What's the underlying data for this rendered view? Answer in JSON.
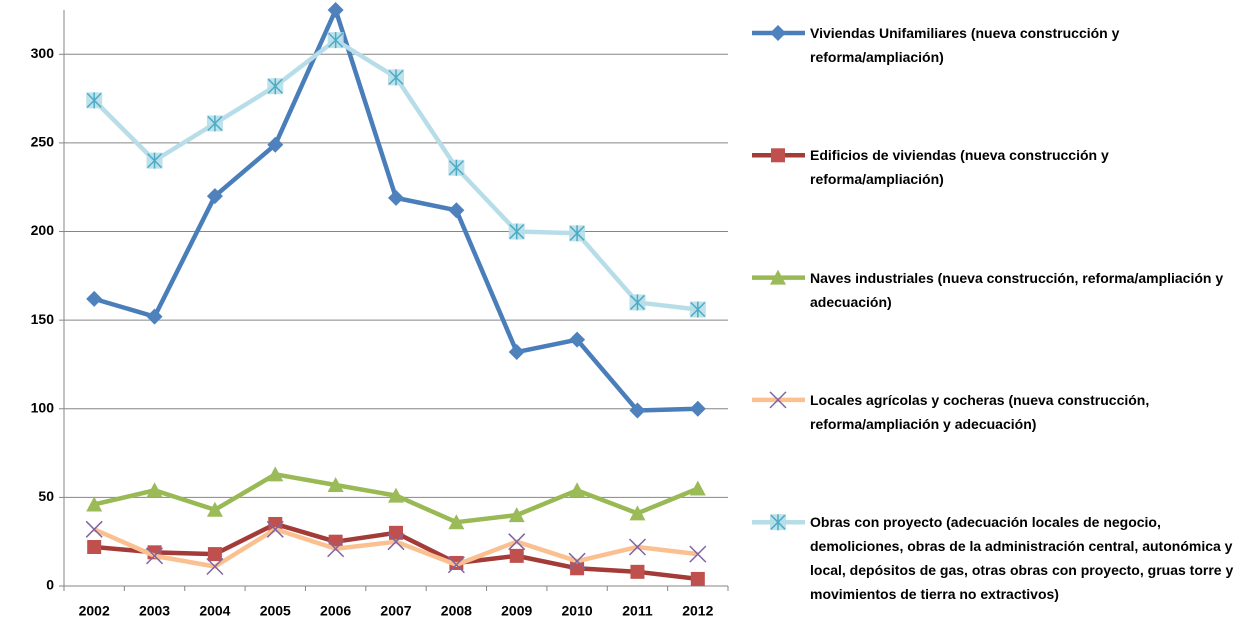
{
  "chart_data": {
    "type": "line",
    "categories": [
      "2002",
      "2003",
      "2004",
      "2005",
      "2006",
      "2007",
      "2008",
      "2009",
      "2010",
      "2011",
      "2012"
    ],
    "series": [
      {
        "name": "Viviendas Unifamiliares (nueva construcción y reforma/ampliación)",
        "color": "#4a7ebb",
        "marker": "diamond",
        "values": [
          162,
          152,
          220,
          249,
          325,
          219,
          212,
          132,
          139,
          99,
          100
        ]
      },
      {
        "name": "Edificios de viviendas (nueva construcción y reforma/ampliación)",
        "color": "#a33b38",
        "marker": "square",
        "values": [
          22,
          19,
          18,
          35,
          25,
          30,
          13,
          17,
          10,
          8,
          4
        ]
      },
      {
        "name": "Naves industriales (nueva construcción, reforma/ampliación y adecuación)",
        "color": "#98b954",
        "marker": "triangle",
        "values": [
          46,
          54,
          43,
          63,
          57,
          51,
          36,
          40,
          54,
          41,
          55
        ]
      },
      {
        "name": "Locales agrícolas y cocheras  (nueva construcción, reforma/ampliación y adecuación)",
        "color": "#fac090",
        "marker": "x",
        "values": [
          32,
          17,
          11,
          32,
          21,
          25,
          12,
          25,
          14,
          22,
          18
        ]
      },
      {
        "name": "Obras con proyecto (adecuación locales de negocio, demoliciones, obras de la administración central, autonómica y local, depósitos de gas, otras obras con proyecto, gruas torre y movimientos de tierra no extractivos)",
        "color": "#b7dee8",
        "marker": "star",
        "values": [
          274,
          240,
          261,
          282,
          308,
          287,
          236,
          200,
          199,
          160,
          156
        ]
      }
    ],
    "ylim": [
      0,
      325
    ],
    "yticks": [
      0,
      50,
      100,
      150,
      200,
      250,
      300
    ],
    "grid": true,
    "legend": "right"
  }
}
